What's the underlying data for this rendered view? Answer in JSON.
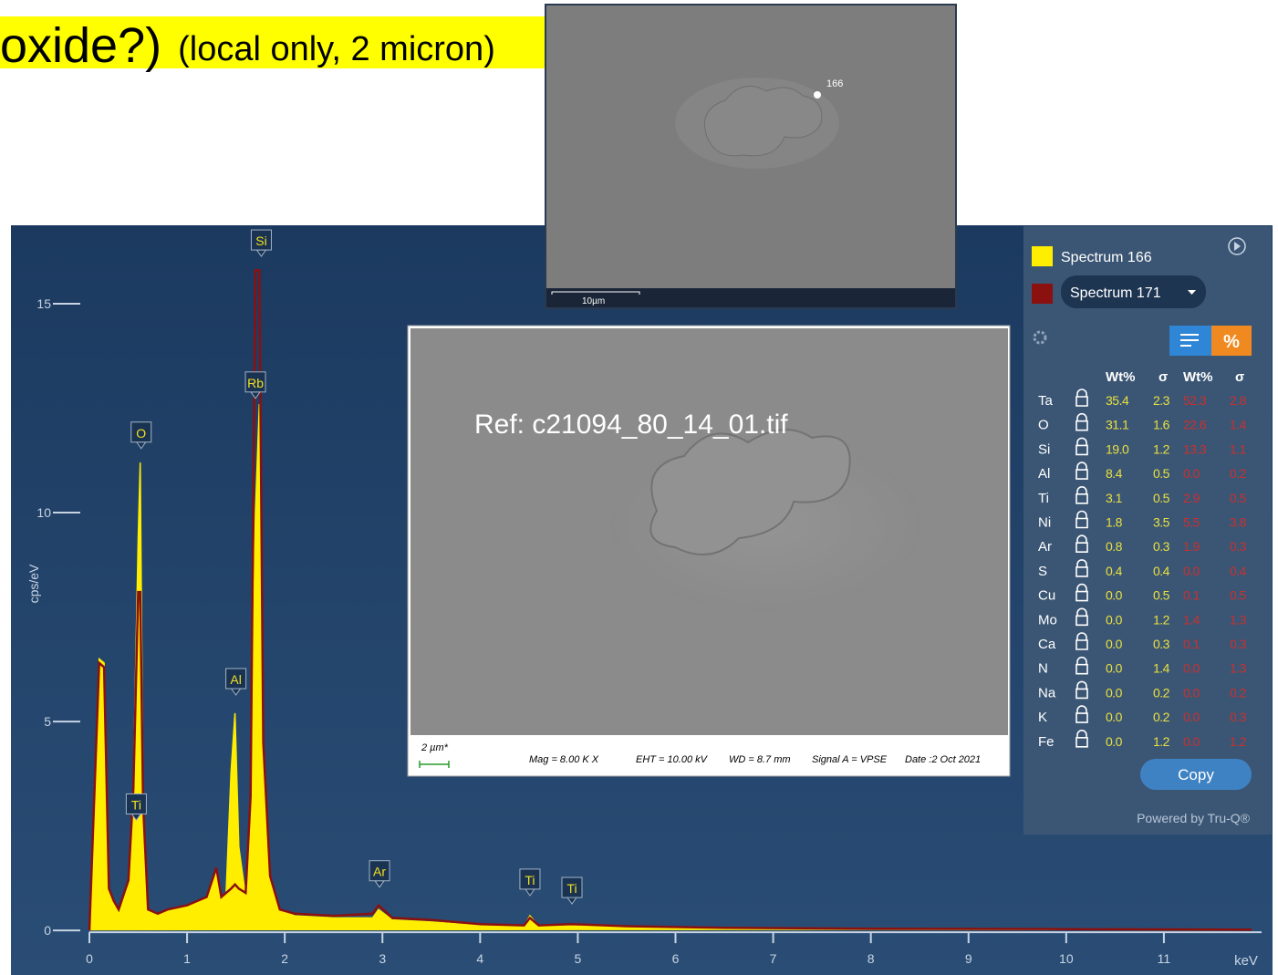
{
  "header": {
    "text_large": "oxide?)",
    "text_small": "(local only, 2 micron)"
  },
  "chart_data": {
    "type": "spectrum",
    "x_label": "keV",
    "y_label": "cps/eV",
    "x": [
      0.0,
      0.1,
      0.15,
      0.2,
      0.25,
      0.3,
      0.4,
      0.45,
      0.5,
      0.52,
      0.55,
      0.6,
      0.7,
      0.8,
      1.0,
      1.2,
      1.3,
      1.35,
      1.4,
      1.45,
      1.49,
      1.53,
      1.6,
      1.65,
      1.7,
      1.74,
      1.78,
      1.85,
      1.95,
      2.1,
      2.5,
      2.9,
      2.96,
      3.1,
      3.5,
      4.0,
      4.45,
      4.51,
      4.6,
      4.93,
      5.5,
      6.5,
      8,
      10,
      11.9
    ],
    "series": [
      {
        "name": "Spectrum 166",
        "color": "#ffee00",
        "values": [
          0,
          6.5,
          6.4,
          1.0,
          0.7,
          0.5,
          1.2,
          3.5,
          9.4,
          11.2,
          3.0,
          0.5,
          0.4,
          0.5,
          0.6,
          0.8,
          1.5,
          0.8,
          0.9,
          3.8,
          5.2,
          2,
          0.8,
          3,
          10,
          12.6,
          4,
          1.2,
          0.5,
          0.35,
          0.3,
          0.3,
          0.5,
          0.25,
          0.2,
          0.12,
          0.1,
          0.35,
          0.1,
          0.15,
          0.08,
          0.05,
          0.03,
          0.02,
          0.01
        ]
      },
      {
        "name": "Spectrum 171",
        "color": "#8b1010",
        "values": [
          0,
          6.4,
          6.3,
          1.0,
          0.7,
          0.5,
          1.2,
          3.4,
          8.1,
          8.1,
          3.0,
          0.5,
          0.4,
          0.5,
          0.6,
          0.8,
          1.5,
          0.8,
          0.9,
          1.0,
          1.1,
          1.0,
          0.9,
          3.2,
          15.8,
          15.8,
          4.5,
          1.3,
          0.5,
          0.4,
          0.35,
          0.4,
          0.6,
          0.3,
          0.25,
          0.15,
          0.12,
          0.3,
          0.12,
          0.15,
          0.1,
          0.06,
          0.04,
          0.03,
          0.02
        ]
      }
    ],
    "xlim": [
      0,
      12
    ],
    "ylim": [
      -0.5,
      16.9
    ],
    "xticks": [
      0,
      1,
      2,
      3,
      4,
      5,
      6,
      7,
      8,
      9,
      10,
      11
    ],
    "yticks": [
      0,
      5,
      10,
      15
    ],
    "annotations": [
      {
        "label": "Si",
        "x": 1.76,
        "y": 16.2
      },
      {
        "label": "Rb",
        "x": 1.7,
        "y": 12.8
      },
      {
        "label": "O",
        "x": 0.53,
        "y": 11.6
      },
      {
        "label": "Al",
        "x": 1.5,
        "y": 5.7
      },
      {
        "label": "Ti",
        "x": 0.48,
        "y": 2.7
      },
      {
        "label": "Ar",
        "x": 2.97,
        "y": 1.1
      },
      {
        "label": "Ti",
        "x": 4.51,
        "y": 0.9
      },
      {
        "label": "Ti",
        "x": 4.94,
        "y": 0.7
      }
    ]
  },
  "top_image": {
    "point_label": "166",
    "scale_label": "10µm"
  },
  "sem_image": {
    "reference": "Ref: c21094_80_14_01.tif",
    "scale_label": "2 µm*",
    "footer": [
      "Mag =  8.00 K X",
      "EHT = 10.00 kV",
      "WD =  8.7 mm",
      "Signal A = VPSE",
      "Date :2 Oct 2021"
    ]
  },
  "results": {
    "columns": [
      "Wt%",
      "σ",
      "Wt%",
      "σ"
    ],
    "rows": [
      [
        "Ta",
        "35.4",
        "2.3",
        "52.3",
        "2.8"
      ],
      [
        "O",
        "31.1",
        "1.6",
        "22.6",
        "1.4"
      ],
      [
        "Si",
        "19.0",
        "1.2",
        "13.3",
        "1.1"
      ],
      [
        "Al",
        "8.4",
        "0.5",
        "0.0",
        "0.2"
      ],
      [
        "Ti",
        "3.1",
        "0.5",
        "2.9",
        "0.5"
      ],
      [
        "Ni",
        "1.8",
        "3.5",
        "5.5",
        "3.8"
      ],
      [
        "Ar",
        "0.8",
        "0.3",
        "1.9",
        "0.3"
      ],
      [
        "S",
        "0.4",
        "0.4",
        "0.0",
        "0.4"
      ],
      [
        "Cu",
        "0.0",
        "0.5",
        "0.1",
        "0.5"
      ],
      [
        "Mo",
        "0.0",
        "1.2",
        "1.4",
        "1.3"
      ],
      [
        "Ca",
        "0.0",
        "0.3",
        "0.1",
        "0.3"
      ],
      [
        "N",
        "0.0",
        "1.4",
        "0.0",
        "1.3"
      ],
      [
        "Na",
        "0.0",
        "0.2",
        "0.0",
        "0.2"
      ],
      [
        "K",
        "0.0",
        "0.2",
        "0.0",
        "0.3"
      ],
      [
        "Fe",
        "0.0",
        "1.2",
        "0.0",
        "1.2"
      ]
    ],
    "copy_button": "Copy",
    "footer": "Powered by Tru-Q®"
  }
}
